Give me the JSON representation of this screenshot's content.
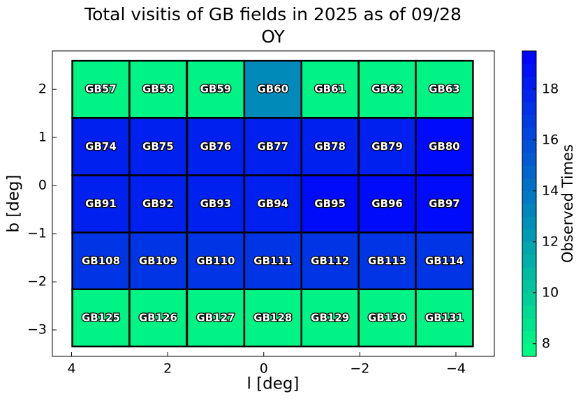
{
  "chart_data": {
    "type": "heatmap",
    "title": "Total visitis of GB fields in 2025 as of 09/28",
    "subtitle": "OY",
    "x_label": "l [deg]",
    "y_label": "b [deg]",
    "colorbar_label": "Observed Times",
    "xlim": [
      4.4,
      -4.8
    ],
    "ylim": [
      -3.55,
      2.8
    ],
    "xticks": [
      4,
      2,
      0,
      {
        "value": -2,
        "label": "−2"
      },
      {
        "value": -4,
        "label": "−4"
      }
    ],
    "yticks": [
      {
        "value": -3,
        "label": "−3"
      },
      {
        "value": -2,
        "label": "−2"
      },
      {
        "value": -1,
        "label": "−1"
      },
      0,
      1,
      2
    ],
    "clim": [
      7.5,
      19.5
    ],
    "cticks": [
      8,
      10,
      12,
      14,
      16,
      18
    ],
    "cmap": [
      "#00ff80",
      "#0000ff"
    ],
    "cell_size": 1.19,
    "fields": [
      {
        "name": "GB57",
        "l": 3.39,
        "b": 2.0,
        "value": 8
      },
      {
        "name": "GB58",
        "l": 2.2,
        "b": 2.0,
        "value": 8
      },
      {
        "name": "GB59",
        "l": 1.0,
        "b": 2.0,
        "value": 8
      },
      {
        "name": "GB60",
        "l": -0.19,
        "b": 2.0,
        "value": 13
      },
      {
        "name": "GB61",
        "l": -1.38,
        "b": 2.0,
        "value": 8
      },
      {
        "name": "GB62",
        "l": -2.57,
        "b": 2.0,
        "value": 8
      },
      {
        "name": "GB63",
        "l": -3.76,
        "b": 2.0,
        "value": 8
      },
      {
        "name": "GB74",
        "l": 3.39,
        "b": 0.81,
        "value": 18
      },
      {
        "name": "GB75",
        "l": 2.2,
        "b": 0.81,
        "value": 18
      },
      {
        "name": "GB76",
        "l": 1.0,
        "b": 0.81,
        "value": 18
      },
      {
        "name": "GB77",
        "l": -0.19,
        "b": 0.81,
        "value": 18
      },
      {
        "name": "GB78",
        "l": -1.38,
        "b": 0.81,
        "value": 18
      },
      {
        "name": "GB79",
        "l": -2.57,
        "b": 0.81,
        "value": 18
      },
      {
        "name": "GB80",
        "l": -3.76,
        "b": 0.81,
        "value": 19
      },
      {
        "name": "GB91",
        "l": 3.39,
        "b": -0.38,
        "value": 18
      },
      {
        "name": "GB92",
        "l": 2.2,
        "b": -0.38,
        "value": 18
      },
      {
        "name": "GB93",
        "l": 1.0,
        "b": -0.38,
        "value": 18
      },
      {
        "name": "GB94",
        "l": -0.19,
        "b": -0.38,
        "value": 18
      },
      {
        "name": "GB95",
        "l": -1.38,
        "b": -0.38,
        "value": 19
      },
      {
        "name": "GB96",
        "l": -2.57,
        "b": -0.38,
        "value": 19
      },
      {
        "name": "GB97",
        "l": -3.76,
        "b": -0.38,
        "value": 19
      },
      {
        "name": "GB108",
        "l": 3.39,
        "b": -1.57,
        "value": 17
      },
      {
        "name": "GB109",
        "l": 2.2,
        "b": -1.57,
        "value": 17
      },
      {
        "name": "GB110",
        "l": 1.0,
        "b": -1.57,
        "value": 17
      },
      {
        "name": "GB111",
        "l": -0.19,
        "b": -1.57,
        "value": 17
      },
      {
        "name": "GB112",
        "l": -1.38,
        "b": -1.57,
        "value": 17
      },
      {
        "name": "GB113",
        "l": -2.57,
        "b": -1.57,
        "value": 17
      },
      {
        "name": "GB114",
        "l": -3.76,
        "b": -1.57,
        "value": 17
      },
      {
        "name": "GB125",
        "l": 3.39,
        "b": -2.75,
        "value": 8
      },
      {
        "name": "GB126",
        "l": 2.2,
        "b": -2.75,
        "value": 8
      },
      {
        "name": "GB127",
        "l": 1.0,
        "b": -2.75,
        "value": 8
      },
      {
        "name": "GB128",
        "l": -0.19,
        "b": -2.75,
        "value": 8
      },
      {
        "name": "GB129",
        "l": -1.38,
        "b": -2.75,
        "value": 8
      },
      {
        "name": "GB130",
        "l": -2.57,
        "b": -2.75,
        "value": 8
      },
      {
        "name": "GB131",
        "l": -3.76,
        "b": -2.75,
        "value": 8
      }
    ]
  }
}
